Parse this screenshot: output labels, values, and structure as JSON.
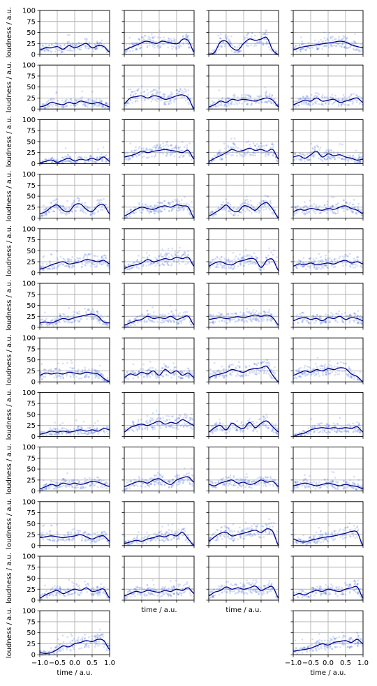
{
  "figure": {
    "ylabel_text": "loudness / a.u.",
    "xlabel_text": "time / a.u.",
    "y_ticks": [
      "0",
      "25",
      "50",
      "75",
      "100"
    ],
    "x_ticks": [
      "−1.0",
      "−0.5",
      "0.0",
      "0.5",
      "1.0"
    ]
  },
  "chart_data": {
    "type": "line",
    "grid_rows": 12,
    "grid_cols": 4,
    "xlim": [
      -1.0,
      1.0
    ],
    "ylim": [
      0,
      100
    ],
    "grid": true,
    "colors": {
      "mean_line": "#00008b",
      "scatter": "#4169e1",
      "grid": "#b0b0b0"
    },
    "panels": [
      {
        "row": 0,
        "col": 0,
        "levels": [
          10,
          15,
          15,
          18,
          12,
          20,
          15,
          20,
          25,
          15,
          20,
          18,
          5
        ]
      },
      {
        "row": 0,
        "col": 1,
        "levels": [
          10,
          15,
          20,
          25,
          30,
          28,
          25,
          30,
          28,
          25,
          25,
          35,
          30,
          5
        ]
      },
      {
        "row": 0,
        "col": 2,
        "levels": [
          0,
          5,
          28,
          30,
          15,
          10,
          25,
          35,
          32,
          35,
          38,
          10,
          0
        ]
      },
      {
        "row": 0,
        "col": 3,
        "levels": [
          10,
          15,
          18,
          20,
          22,
          24,
          26,
          28,
          30,
          28,
          22,
          18,
          15
        ]
      },
      {
        "row": 1,
        "col": 0,
        "levels": [
          5,
          8,
          15,
          12,
          10,
          15,
          12,
          18,
          15,
          12,
          15,
          10,
          5
        ]
      },
      {
        "row": 1,
        "col": 1,
        "levels": [
          12,
          25,
          28,
          30,
          25,
          30,
          28,
          22,
          25,
          30,
          32,
          25,
          0
        ]
      },
      {
        "row": 1,
        "col": 2,
        "levels": [
          5,
          10,
          18,
          15,
          22,
          20,
          22,
          20,
          18,
          22,
          25,
          20,
          5
        ]
      },
      {
        "row": 1,
        "col": 3,
        "levels": [
          10,
          15,
          20,
          18,
          25,
          18,
          20,
          22,
          15,
          18,
          22,
          25,
          15
        ]
      },
      {
        "row": 2,
        "col": 0,
        "levels": [
          2,
          5,
          8,
          3,
          8,
          12,
          6,
          10,
          8,
          12,
          8,
          15,
          5
        ]
      },
      {
        "row": 2,
        "col": 1,
        "levels": [
          15,
          18,
          22,
          28,
          25,
          28,
          30,
          32,
          30,
          28,
          25,
          30,
          10
        ]
      },
      {
        "row": 2,
        "col": 2,
        "levels": [
          5,
          12,
          18,
          25,
          32,
          28,
          30,
          35,
          30,
          32,
          28,
          32,
          10
        ]
      },
      {
        "row": 2,
        "col": 3,
        "levels": [
          15,
          18,
          12,
          20,
          28,
          15,
          22,
          18,
          20,
          15,
          12,
          8,
          10
        ]
      },
      {
        "row": 3,
        "col": 0,
        "levels": [
          10,
          15,
          25,
          30,
          18,
          15,
          30,
          32,
          20,
          15,
          28,
          30,
          10
        ]
      },
      {
        "row": 3,
        "col": 1,
        "levels": [
          5,
          12,
          20,
          25,
          22,
          20,
          25,
          28,
          25,
          30,
          28,
          25,
          0
        ]
      },
      {
        "row": 3,
        "col": 2,
        "levels": [
          5,
          12,
          20,
          30,
          18,
          15,
          28,
          25,
          18,
          30,
          35,
          20,
          0
        ]
      },
      {
        "row": 3,
        "col": 3,
        "levels": [
          15,
          20,
          18,
          22,
          20,
          18,
          22,
          20,
          25,
          28,
          22,
          18,
          10
        ]
      },
      {
        "row": 4,
        "col": 0,
        "levels": [
          8,
          12,
          18,
          22,
          25,
          20,
          22,
          25,
          30,
          28,
          25,
          28,
          20
        ]
      },
      {
        "row": 4,
        "col": 1,
        "levels": [
          10,
          15,
          18,
          22,
          30,
          25,
          28,
          32,
          30,
          35,
          32,
          35,
          15
        ]
      },
      {
        "row": 4,
        "col": 2,
        "levels": [
          15,
          22,
          25,
          20,
          18,
          25,
          28,
          32,
          30,
          12,
          28,
          30,
          5
        ]
      },
      {
        "row": 4,
        "col": 3,
        "levels": [
          15,
          20,
          18,
          22,
          18,
          20,
          22,
          20,
          25,
          28,
          22,
          25,
          20
        ]
      },
      {
        "row": 5,
        "col": 0,
        "levels": [
          10,
          12,
          10,
          15,
          20,
          18,
          22,
          25,
          28,
          30,
          25,
          12,
          10
        ]
      },
      {
        "row": 5,
        "col": 1,
        "levels": [
          5,
          10,
          15,
          18,
          25,
          20,
          22,
          20,
          25,
          18,
          22,
          25,
          5
        ]
      },
      {
        "row": 5,
        "col": 2,
        "levels": [
          18,
          20,
          22,
          20,
          22,
          24,
          22,
          25,
          28,
          25,
          28,
          22,
          5
        ]
      },
      {
        "row": 5,
        "col": 3,
        "levels": [
          15,
          20,
          22,
          18,
          20,
          15,
          22,
          20,
          25,
          18,
          22,
          20,
          15
        ]
      },
      {
        "row": 6,
        "col": 0,
        "levels": [
          15,
          20,
          18,
          20,
          18,
          22,
          20,
          18,
          22,
          20,
          18,
          8,
          0
        ]
      },
      {
        "row": 6,
        "col": 1,
        "levels": [
          10,
          18,
          15,
          22,
          18,
          25,
          15,
          28,
          20,
          25,
          15,
          20,
          10
        ]
      },
      {
        "row": 6,
        "col": 2,
        "levels": [
          10,
          15,
          18,
          22,
          28,
          25,
          22,
          28,
          30,
          32,
          35,
          15,
          0
        ]
      },
      {
        "row": 6,
        "col": 3,
        "levels": [
          15,
          20,
          25,
          22,
          28,
          25,
          30,
          28,
          32,
          30,
          18,
          12,
          0
        ]
      },
      {
        "row": 7,
        "col": 0,
        "levels": [
          5,
          8,
          12,
          10,
          12,
          10,
          12,
          15,
          12,
          15,
          12,
          18,
          15
        ]
      },
      {
        "row": 7,
        "col": 1,
        "levels": [
          10,
          20,
          25,
          28,
          25,
          30,
          35,
          28,
          32,
          30,
          38,
          32,
          25
        ]
      },
      {
        "row": 7,
        "col": 2,
        "levels": [
          10,
          20,
          25,
          15,
          30,
          22,
          18,
          32,
          20,
          30,
          35,
          22,
          10
        ]
      },
      {
        "row": 7,
        "col": 3,
        "levels": [
          0,
          5,
          8,
          15,
          18,
          20,
          18,
          20,
          18,
          20,
          18,
          22,
          10
        ]
      },
      {
        "row": 8,
        "col": 0,
        "levels": [
          5,
          10,
          15,
          12,
          18,
          15,
          18,
          15,
          18,
          22,
          20,
          15,
          10
        ]
      },
      {
        "row": 8,
        "col": 1,
        "levels": [
          10,
          15,
          20,
          22,
          18,
          25,
          28,
          20,
          15,
          25,
          30,
          32,
          20
        ]
      },
      {
        "row": 8,
        "col": 2,
        "levels": [
          15,
          12,
          18,
          22,
          25,
          18,
          20,
          15,
          18,
          25,
          20,
          22,
          10
        ]
      },
      {
        "row": 8,
        "col": 3,
        "levels": [
          12,
          15,
          18,
          15,
          12,
          15,
          18,
          15,
          12,
          15,
          12,
          10,
          5
        ]
      },
      {
        "row": 9,
        "col": 0,
        "levels": [
          18,
          20,
          22,
          20,
          18,
          20,
          22,
          25,
          20,
          15,
          20,
          22,
          10
        ]
      },
      {
        "row": 9,
        "col": 1,
        "levels": [
          5,
          8,
          12,
          10,
          15,
          18,
          22,
          20,
          25,
          22,
          30,
          15,
          0
        ]
      },
      {
        "row": 9,
        "col": 2,
        "levels": [
          10,
          20,
          28,
          30,
          22,
          25,
          28,
          32,
          35,
          30,
          38,
          32,
          0
        ]
      },
      {
        "row": 9,
        "col": 3,
        "levels": [
          15,
          10,
          8,
          12,
          15,
          18,
          20,
          22,
          25,
          28,
          32,
          30,
          0
        ]
      },
      {
        "row": 10,
        "col": 0,
        "levels": [
          5,
          12,
          18,
          22,
          15,
          20,
          25,
          22,
          28,
          20,
          22,
          25,
          5
        ]
      },
      {
        "row": 10,
        "col": 1,
        "levels": [
          10,
          15,
          20,
          18,
          22,
          20,
          18,
          22,
          20,
          25,
          22,
          28,
          15
        ]
      },
      {
        "row": 10,
        "col": 2,
        "levels": [
          10,
          18,
          22,
          30,
          25,
          28,
          25,
          28,
          32,
          22,
          28,
          30,
          5
        ]
      },
      {
        "row": 10,
        "col": 3,
        "levels": [
          10,
          15,
          12,
          18,
          22,
          20,
          25,
          22,
          20,
          25,
          28,
          30,
          5
        ]
      },
      {
        "row": 11,
        "col": 0,
        "levels": [
          5,
          3,
          5,
          12,
          20,
          18,
          25,
          28,
          32,
          30,
          35,
          32,
          12
        ]
      },
      {
        "row": 11,
        "col": 3,
        "levels": [
          8,
          10,
          12,
          15,
          20,
          25,
          22,
          28,
          30,
          32,
          28,
          35,
          25
        ]
      }
    ]
  }
}
